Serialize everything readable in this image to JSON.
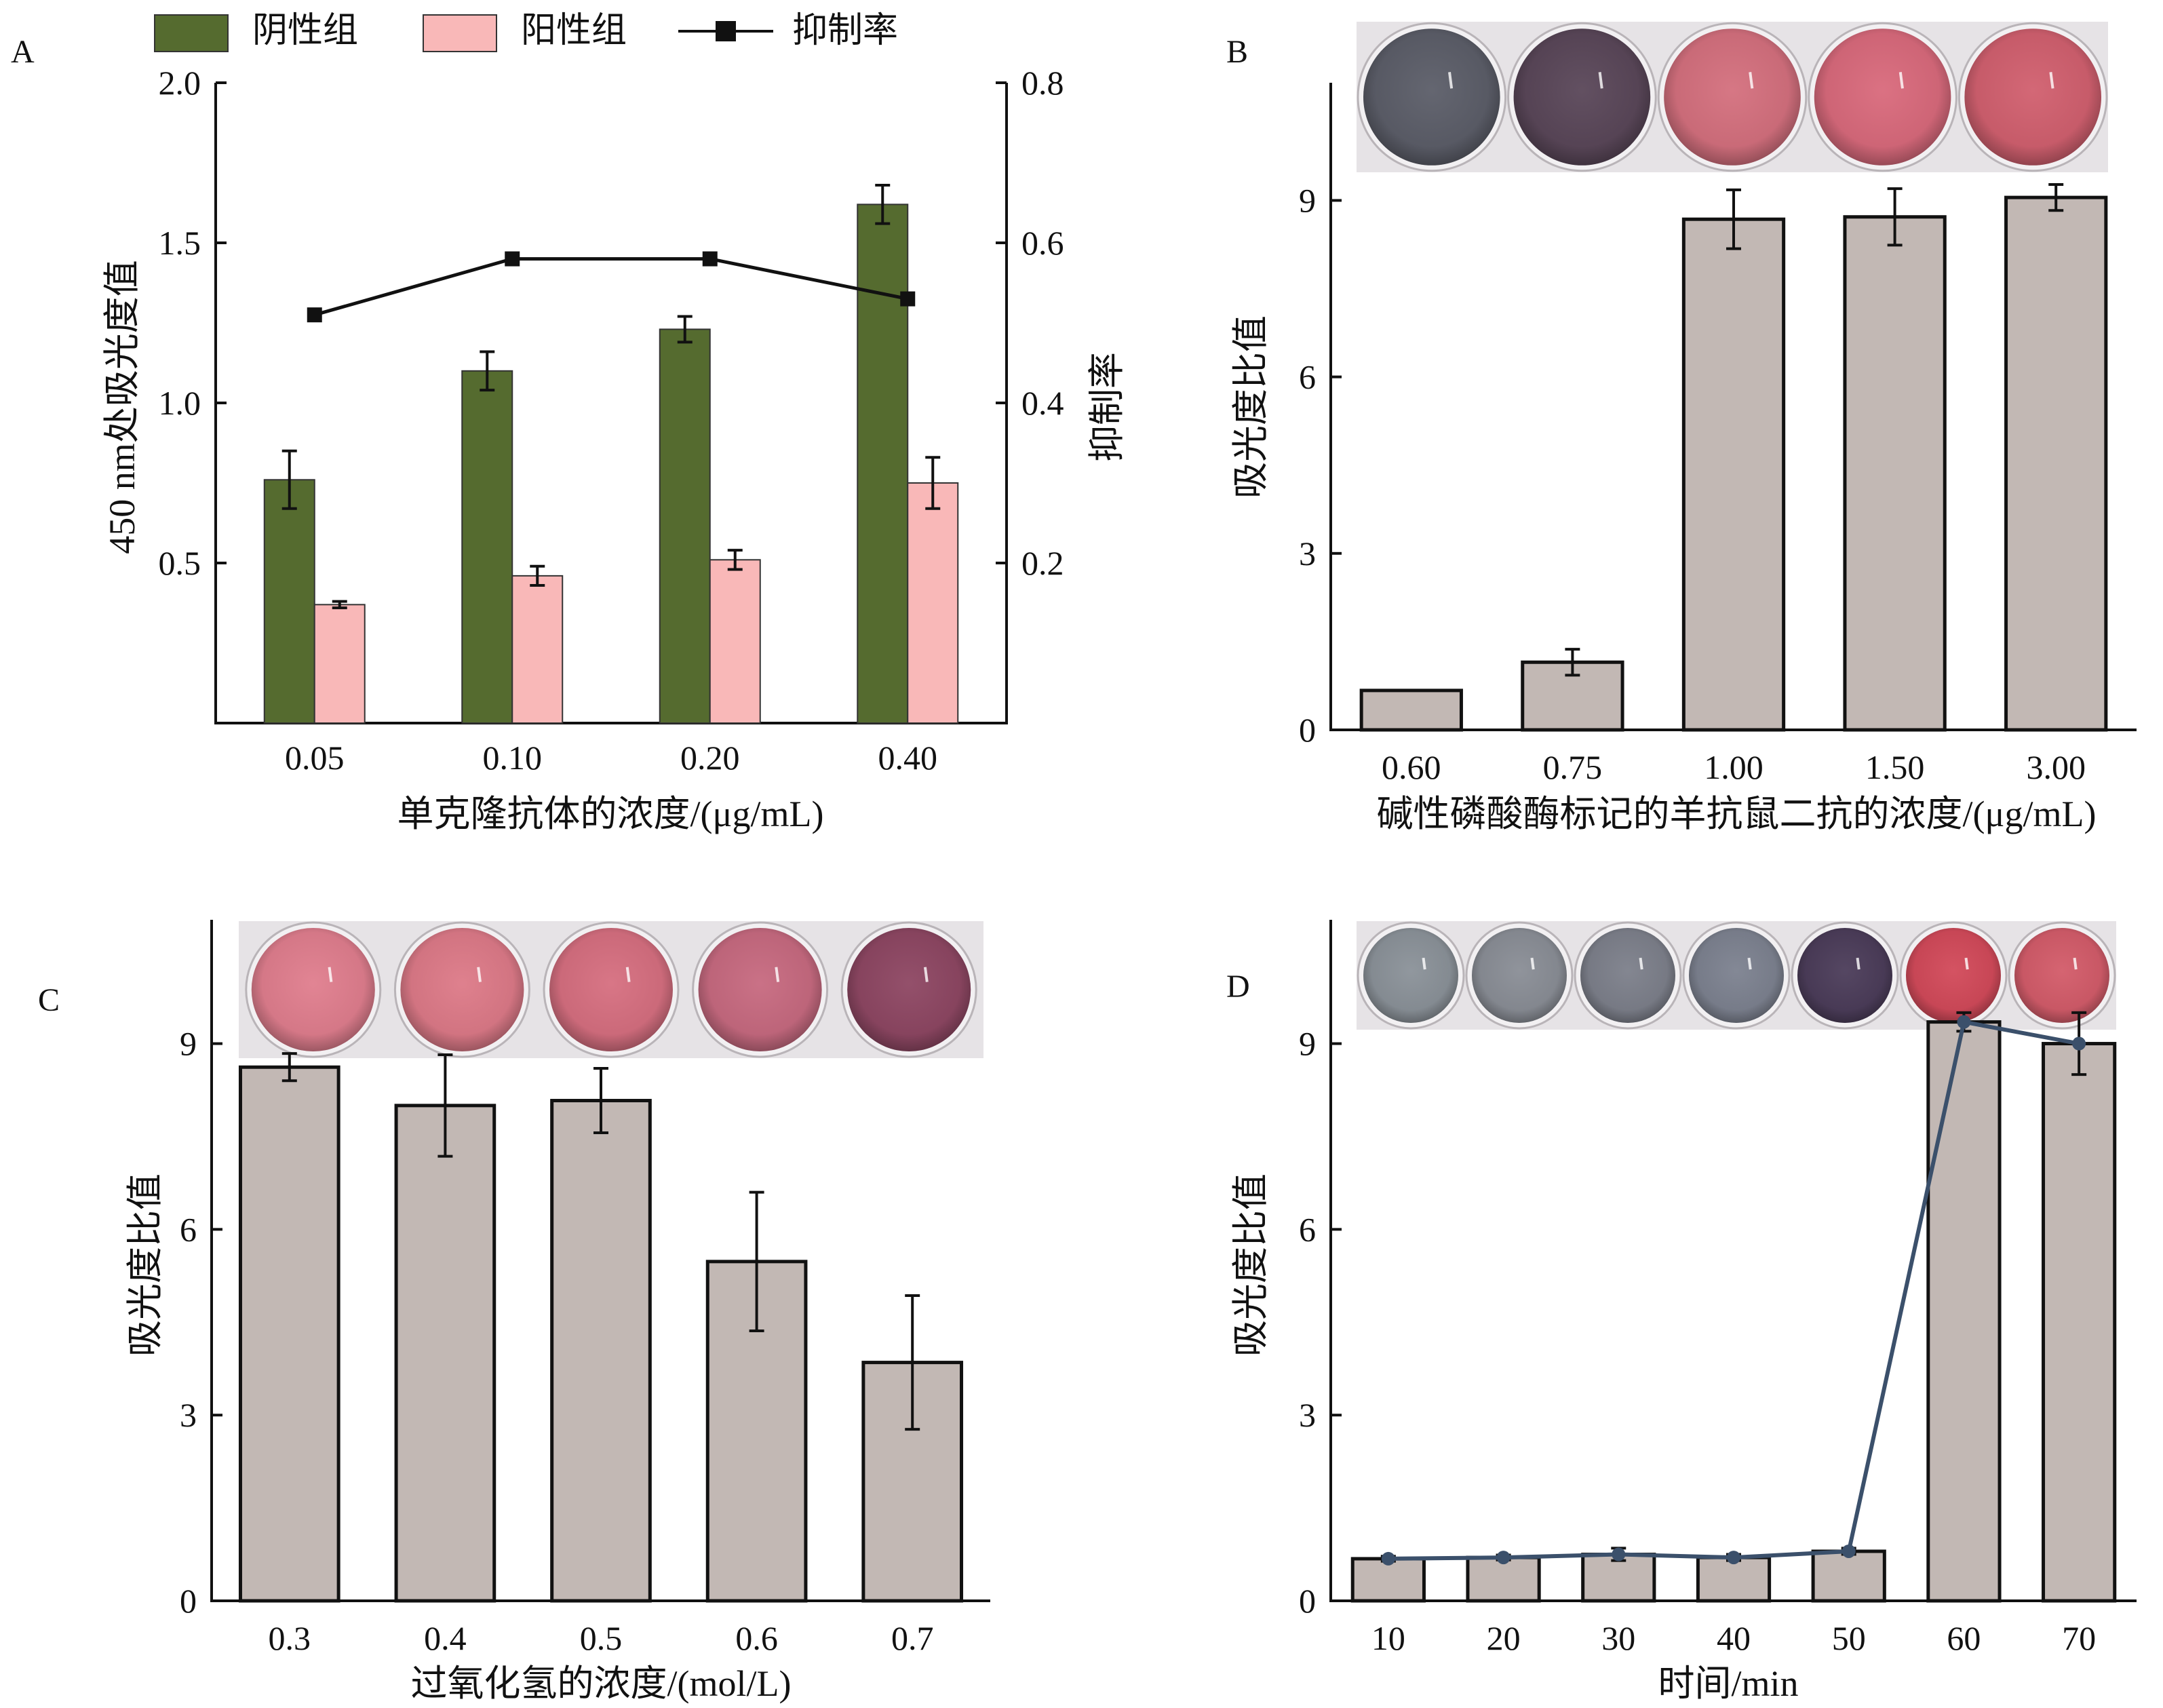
{
  "chart_data": [
    {
      "panel": "A",
      "type": "bar",
      "categories": [
        "0.05",
        "0.10",
        "0.20",
        "0.40"
      ],
      "xlabel": "单克隆抗体的浓度/(μg/mL)",
      "ylabel": "450 nm处吸光度值",
      "y2label": "抑制率",
      "ylim": [
        0,
        2.0
      ],
      "yticks": [
        "0.5",
        "1.0",
        "1.5",
        "2.0"
      ],
      "y2lim": [
        0,
        0.8
      ],
      "y2ticks": [
        "0.2",
        "0.4",
        "0.6",
        "0.8"
      ],
      "legend_position": "top",
      "series": [
        {
          "name": "阴性组",
          "kind": "bar",
          "color": "#556b2f",
          "values": [
            0.76,
            1.1,
            1.23,
            1.62
          ],
          "errors": [
            0.09,
            0.06,
            0.04,
            0.06
          ]
        },
        {
          "name": "阳性组",
          "kind": "bar",
          "color": "#f9b8b8",
          "values": [
            0.37,
            0.46,
            0.51,
            0.75
          ],
          "errors": [
            0.01,
            0.03,
            0.03,
            0.08
          ]
        },
        {
          "name": "抑制率",
          "kind": "line",
          "axis": "right",
          "color": "#111111",
          "values": [
            0.51,
            0.58,
            0.58,
            0.53
          ]
        }
      ]
    },
    {
      "panel": "B",
      "type": "bar",
      "categories": [
        "0.60",
        "0.75",
        "1.00",
        "1.50",
        "3.00"
      ],
      "xlabel": "碱性磷酸酶标记的羊抗鼠二抗的浓度/(μg/mL)",
      "ylabel": "吸光度比值",
      "ylim": [
        0,
        11
      ],
      "yticks": [
        "0",
        "3",
        "6",
        "9"
      ],
      "bar_color": "#c2b8b4",
      "values": [
        0.67,
        1.15,
        8.68,
        8.72,
        9.05
      ],
      "errors": [
        0.0,
        0.22,
        0.5,
        0.48,
        0.22
      ],
      "well_colors": [
        "#5c5e69",
        "#5a4759",
        "#d4707e",
        "#d96a7c",
        "#d1606f"
      ]
    },
    {
      "panel": "C",
      "type": "bar",
      "categories": [
        "0.3",
        "0.4",
        "0.5",
        "0.6",
        "0.7"
      ],
      "xlabel": "过氧化氢的浓度/(mol/L)",
      "ylabel": "吸光度比值",
      "ylim": [
        0,
        11
      ],
      "yticks": [
        "0",
        "3",
        "6",
        "9"
      ],
      "bar_color": "#c2b8b4",
      "values": [
        8.62,
        8.0,
        8.08,
        5.48,
        3.85
      ],
      "errors": [
        0.22,
        0.82,
        0.52,
        1.12,
        1.08
      ],
      "well_colors": [
        "#e07e8e",
        "#dd7a88",
        "#d66f80",
        "#c76a80",
        "#8e4763"
      ]
    },
    {
      "panel": "D",
      "type": "bar",
      "categories": [
        "10",
        "20",
        "30",
        "40",
        "50",
        "60",
        "70"
      ],
      "xlabel": "时间/min",
      "ylabel": "吸光度比值",
      "ylim": [
        0,
        11
      ],
      "yticks": [
        "0",
        "3",
        "6",
        "9"
      ],
      "bar_color": "#c2b8b4",
      "line_color": "#3b506b",
      "values": [
        0.68,
        0.7,
        0.75,
        0.7,
        0.8,
        9.35,
        9.0
      ],
      "errors": [
        0.04,
        0.04,
        0.1,
        0.05,
        0.05,
        0.15,
        0.5
      ],
      "well_colors": [
        "#8b9299",
        "#8a8e96",
        "#7d808b",
        "#7d8290",
        "#4c3d5a",
        "#d24a5a",
        "#d35c6a"
      ]
    }
  ]
}
